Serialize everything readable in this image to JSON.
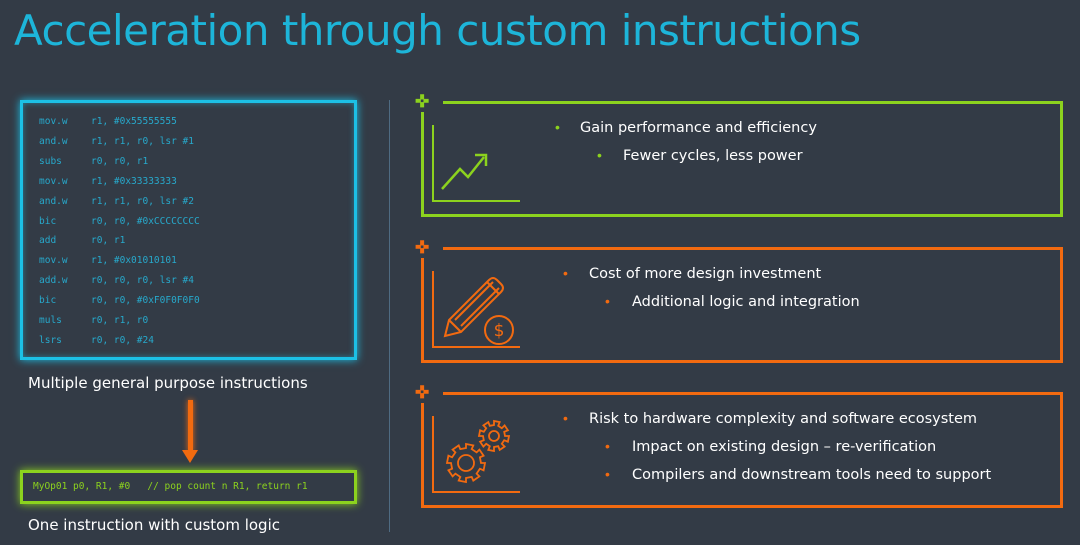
{
  "title": "Acceleration through custom instructions",
  "code_block": {
    "lines": [
      {
        "op": "mov.w",
        "args": "r1, #0x55555555"
      },
      {
        "op": "and.w",
        "args": "r1, r1, r0, lsr #1"
      },
      {
        "op": "subs",
        "args": "r0, r0, r1"
      },
      {
        "op": "mov.w",
        "args": "r1, #0x33333333"
      },
      {
        "op": "and.w",
        "args": "r1, r1, r0, lsr #2"
      },
      {
        "op": "bic",
        "args": "r0, r0, #0xCCCCCCCC"
      },
      {
        "op": "add",
        "args": "r0, r1"
      },
      {
        "op": "mov.w",
        "args": "r1, #0x01010101"
      },
      {
        "op": "add.w",
        "args": "r0, r0, r0, lsr #4"
      },
      {
        "op": "bic",
        "args": "r0, r0, #0xF0F0F0F0"
      },
      {
        "op": "muls",
        "args": "r0, r1, r0"
      },
      {
        "op": "lsrs",
        "args": "r0, r0, #24"
      }
    ],
    "caption": "Multiple general purpose instructions"
  },
  "custom_block": {
    "code": "MyOp01 p0, R1, #0   // pop count n R1, return r1",
    "caption": "One instruction with custom logic"
  },
  "panels": [
    {
      "icon": "trend-up-chart-icon",
      "color": "#8cd21e",
      "bullet": "Gain performance and efficiency",
      "subs": [
        "Fewer cycles, less power"
      ]
    },
    {
      "icon": "pencil-dollar-icon",
      "color": "#f26a10",
      "bullet": "Cost of more design investment",
      "subs": [
        "Additional logic and integration"
      ]
    },
    {
      "icon": "gears-icon",
      "color": "#f26a10",
      "bullet": "Risk to hardware complexity and software ecosystem",
      "subs": [
        "Impact on existing design – re-verification",
        "Compilers and downstream tools need to support"
      ]
    }
  ],
  "colors": {
    "background": "#333b46",
    "title": "#1db5d9",
    "code": "#1cc0e6",
    "green": "#8cd21e",
    "orange": "#f26a10"
  },
  "bullet_glyph": "•",
  "plus_glyph": "✜"
}
